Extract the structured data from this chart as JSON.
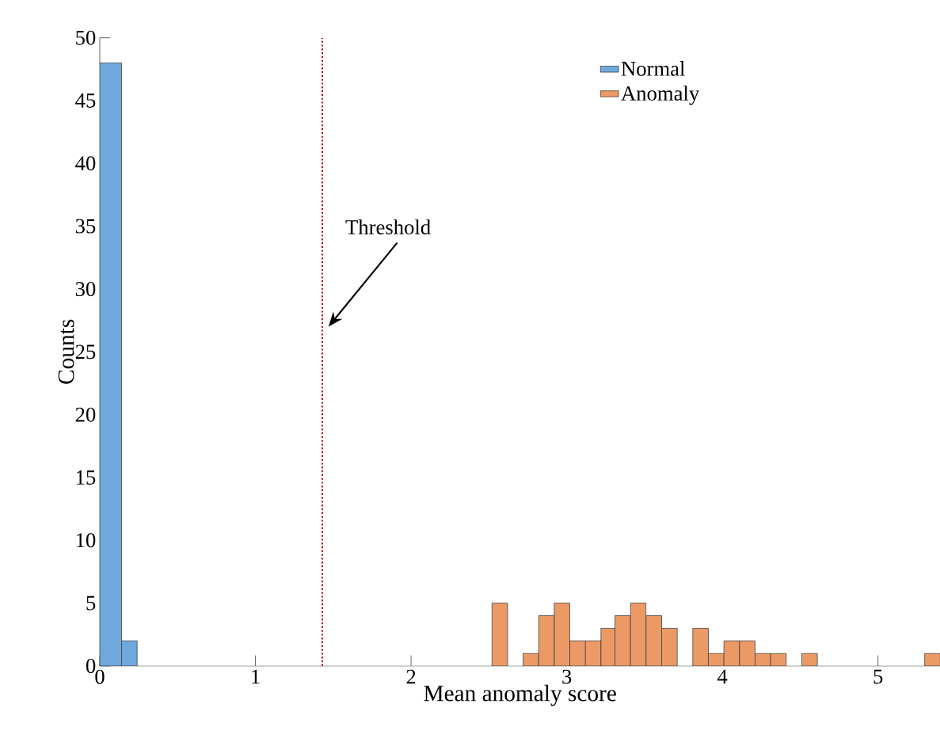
{
  "chart_data": {
    "type": "histogram",
    "xlabel": "Mean anomaly score",
    "ylabel": "Counts",
    "xlim": [
      0,
      5.4
    ],
    "ylim": [
      0,
      50
    ],
    "xticks": [
      0,
      1,
      2,
      3,
      4,
      5
    ],
    "yticks": [
      0,
      5,
      10,
      15,
      20,
      25,
      30,
      35,
      40,
      45,
      50
    ],
    "legend": "top right",
    "bins": [
      0,
      0.14,
      0.24,
      2.52,
      2.62,
      2.72,
      2.82,
      2.92,
      3.02,
      3.12,
      3.22,
      3.31,
      3.41,
      3.51,
      3.61,
      3.71,
      3.81,
      3.91,
      4.01,
      4.11,
      4.21,
      4.31,
      4.41,
      4.51,
      4.61,
      5.3,
      5.4
    ],
    "series": [
      {
        "name": "Normal",
        "color": "#6fa8dc",
        "values": [
          48,
          2,
          0,
          0,
          0,
          0,
          0,
          0,
          0,
          0,
          0,
          0,
          0,
          0,
          0,
          0,
          0,
          0,
          0,
          0,
          0,
          0,
          0,
          0,
          0,
          0
        ]
      },
      {
        "name": "Anomaly",
        "color": "#eb9a66",
        "values": [
          0,
          0,
          0,
          5,
          0,
          1,
          4,
          5,
          2,
          2,
          3,
          4,
          5,
          4,
          3,
          0,
          3,
          1,
          2,
          2,
          1,
          1,
          0,
          1,
          0,
          1
        ]
      }
    ],
    "ref_lines": [
      {
        "axis": "x",
        "value": 1.43,
        "label": "Threshold",
        "color": "#c00000",
        "line_style": "dotted"
      }
    ]
  }
}
